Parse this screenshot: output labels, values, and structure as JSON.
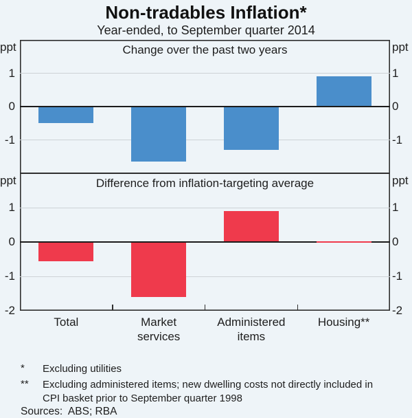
{
  "header": {
    "title": "Non-tradables Inflation*",
    "subtitle": "Year-ended, to September quarter 2014"
  },
  "chart_data": [
    {
      "type": "bar",
      "panel": "top",
      "title": "Change over the past two years",
      "categories": [
        "Total",
        "Market services",
        "Administered items",
        "Housing**"
      ],
      "values": [
        -0.5,
        -1.65,
        -1.3,
        0.9
      ],
      "unit": "ppt",
      "ylim": [
        -2,
        2
      ],
      "yticks": [
        1,
        0,
        -1
      ],
      "bar_color": "#4a8ecb",
      "grid": "on at +1 and -1",
      "legend": "none"
    },
    {
      "type": "bar",
      "panel": "bottom",
      "title": "Difference from inflation-targeting average",
      "categories": [
        "Total",
        "Market services",
        "Administered items",
        "Housing**"
      ],
      "values": [
        -0.55,
        -1.6,
        0.9,
        0.02
      ],
      "unit": "ppt",
      "ylim": [
        -2,
        2
      ],
      "yticks": [
        1,
        0,
        -1,
        -2
      ],
      "bar_color": "#ef3a4c",
      "grid": "on at +1 and -1",
      "legend": "none"
    }
  ],
  "x_tick_labels": [
    "Total",
    "Market\nservices",
    "Administered\nitems",
    "Housing**"
  ],
  "footnotes": [
    {
      "marker": "*",
      "text": "Excluding utilities"
    },
    {
      "marker": "**",
      "text": "Excluding administered items; new dwelling costs not directly included in CPI basket prior to September quarter 1998"
    }
  ],
  "sources": "Sources:  ABS; RBA",
  "colors": {
    "background": "#eef4f8",
    "blue": "#4a8ecb",
    "red": "#ef3a4c",
    "grid": "#cdd2d6",
    "axis": "#2f2f2f",
    "zero_line": "#1b1b1b",
    "text": "#1d1d1d"
  }
}
